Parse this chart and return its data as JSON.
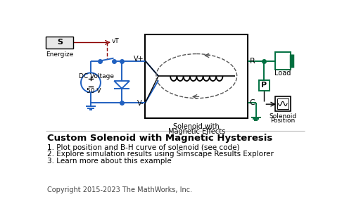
{
  "title": "Custom Solenoid with Magnetic Hysteresis",
  "bullet1": "1. Plot position and B-H curve of solenoid (see code)",
  "bullet2": "2. Explore simulation results using Simscape Results Explorer",
  "bullet3": "3. Learn more about this example",
  "copyright": "Copyright 2015-2023 The MathWorks, Inc.",
  "bg_color": "#ffffff",
  "blue": "#2060c0",
  "green": "#007040",
  "red": "#8B0000",
  "black": "#000000",
  "gray": "#666666"
}
